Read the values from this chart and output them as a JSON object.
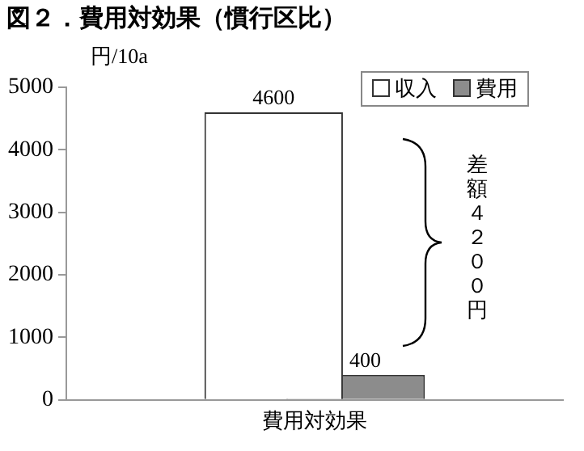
{
  "chart_data": {
    "type": "bar",
    "title": "図２．費用対効果（慣行区比）",
    "ylabel": "円/10a",
    "categories": [
      "費用対効果"
    ],
    "series": [
      {
        "name": "収入",
        "color": "#ffffff",
        "values": [
          4600
        ]
      },
      {
        "name": "費用",
        "color": "#8c8c8c",
        "values": [
          400
        ]
      }
    ],
    "ylim": [
      0,
      5000
    ],
    "yticks": [
      0,
      1000,
      2000,
      3000,
      4000,
      5000
    ],
    "grid": false,
    "legend": "top right",
    "data_labels": true,
    "annotations": [
      "差額４２００円"
    ]
  }
}
